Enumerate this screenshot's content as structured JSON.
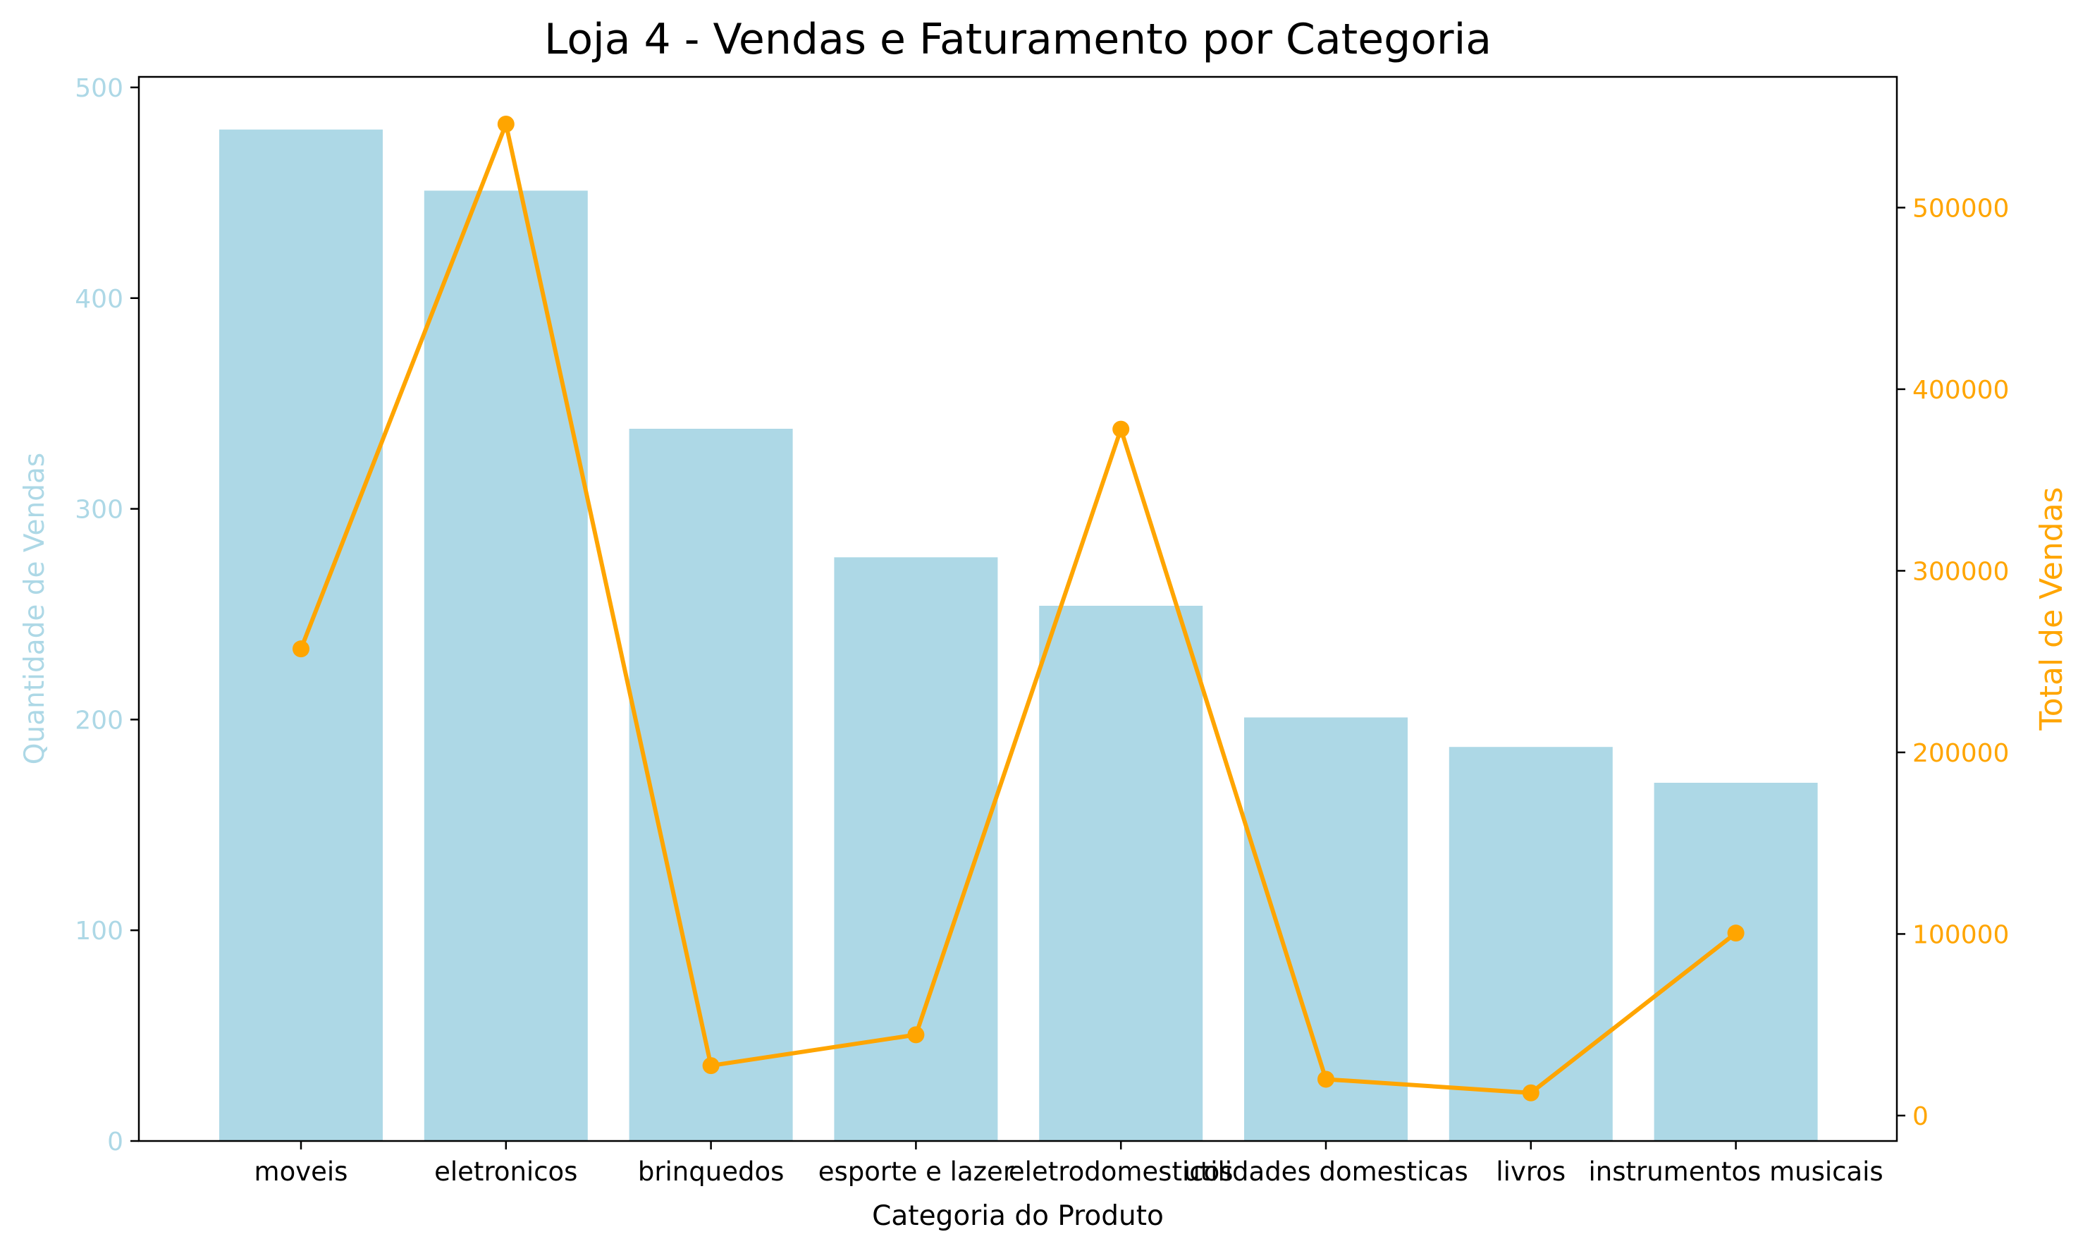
{
  "chart_data": {
    "type": "bar",
    "title": "Loja 4 - Vendas e Faturamento por Categoria",
    "xlabel": "Categoria do Produto",
    "ylabel": "Quantidade de Vendas",
    "y2label": "Total de Vendas",
    "categories": [
      "moveis",
      "eletronicos",
      "brinquedos",
      "esporte e lazer",
      "eletrodomesticos",
      "utilidades domesticas",
      "livros",
      "instrumentos musicais"
    ],
    "ylim": [
      0,
      505
    ],
    "yticks": [
      0,
      100,
      200,
      300,
      400,
      500
    ],
    "y2lim": [
      -14000,
      572000
    ],
    "y2ticks": [
      0,
      100000,
      200000,
      300000,
      400000,
      500000
    ],
    "grid": false,
    "series": [
      {
        "type": "bar",
        "axis": "left",
        "color": "#add8e6",
        "values": [
          480,
          451,
          338,
          277,
          254,
          201,
          187,
          170
        ]
      },
      {
        "type": "line",
        "axis": "right",
        "color": "#ffa500",
        "marker": "circle",
        "values": [
          257000,
          546000,
          27500,
          44500,
          378000,
          20000,
          12500,
          100500
        ]
      }
    ]
  }
}
